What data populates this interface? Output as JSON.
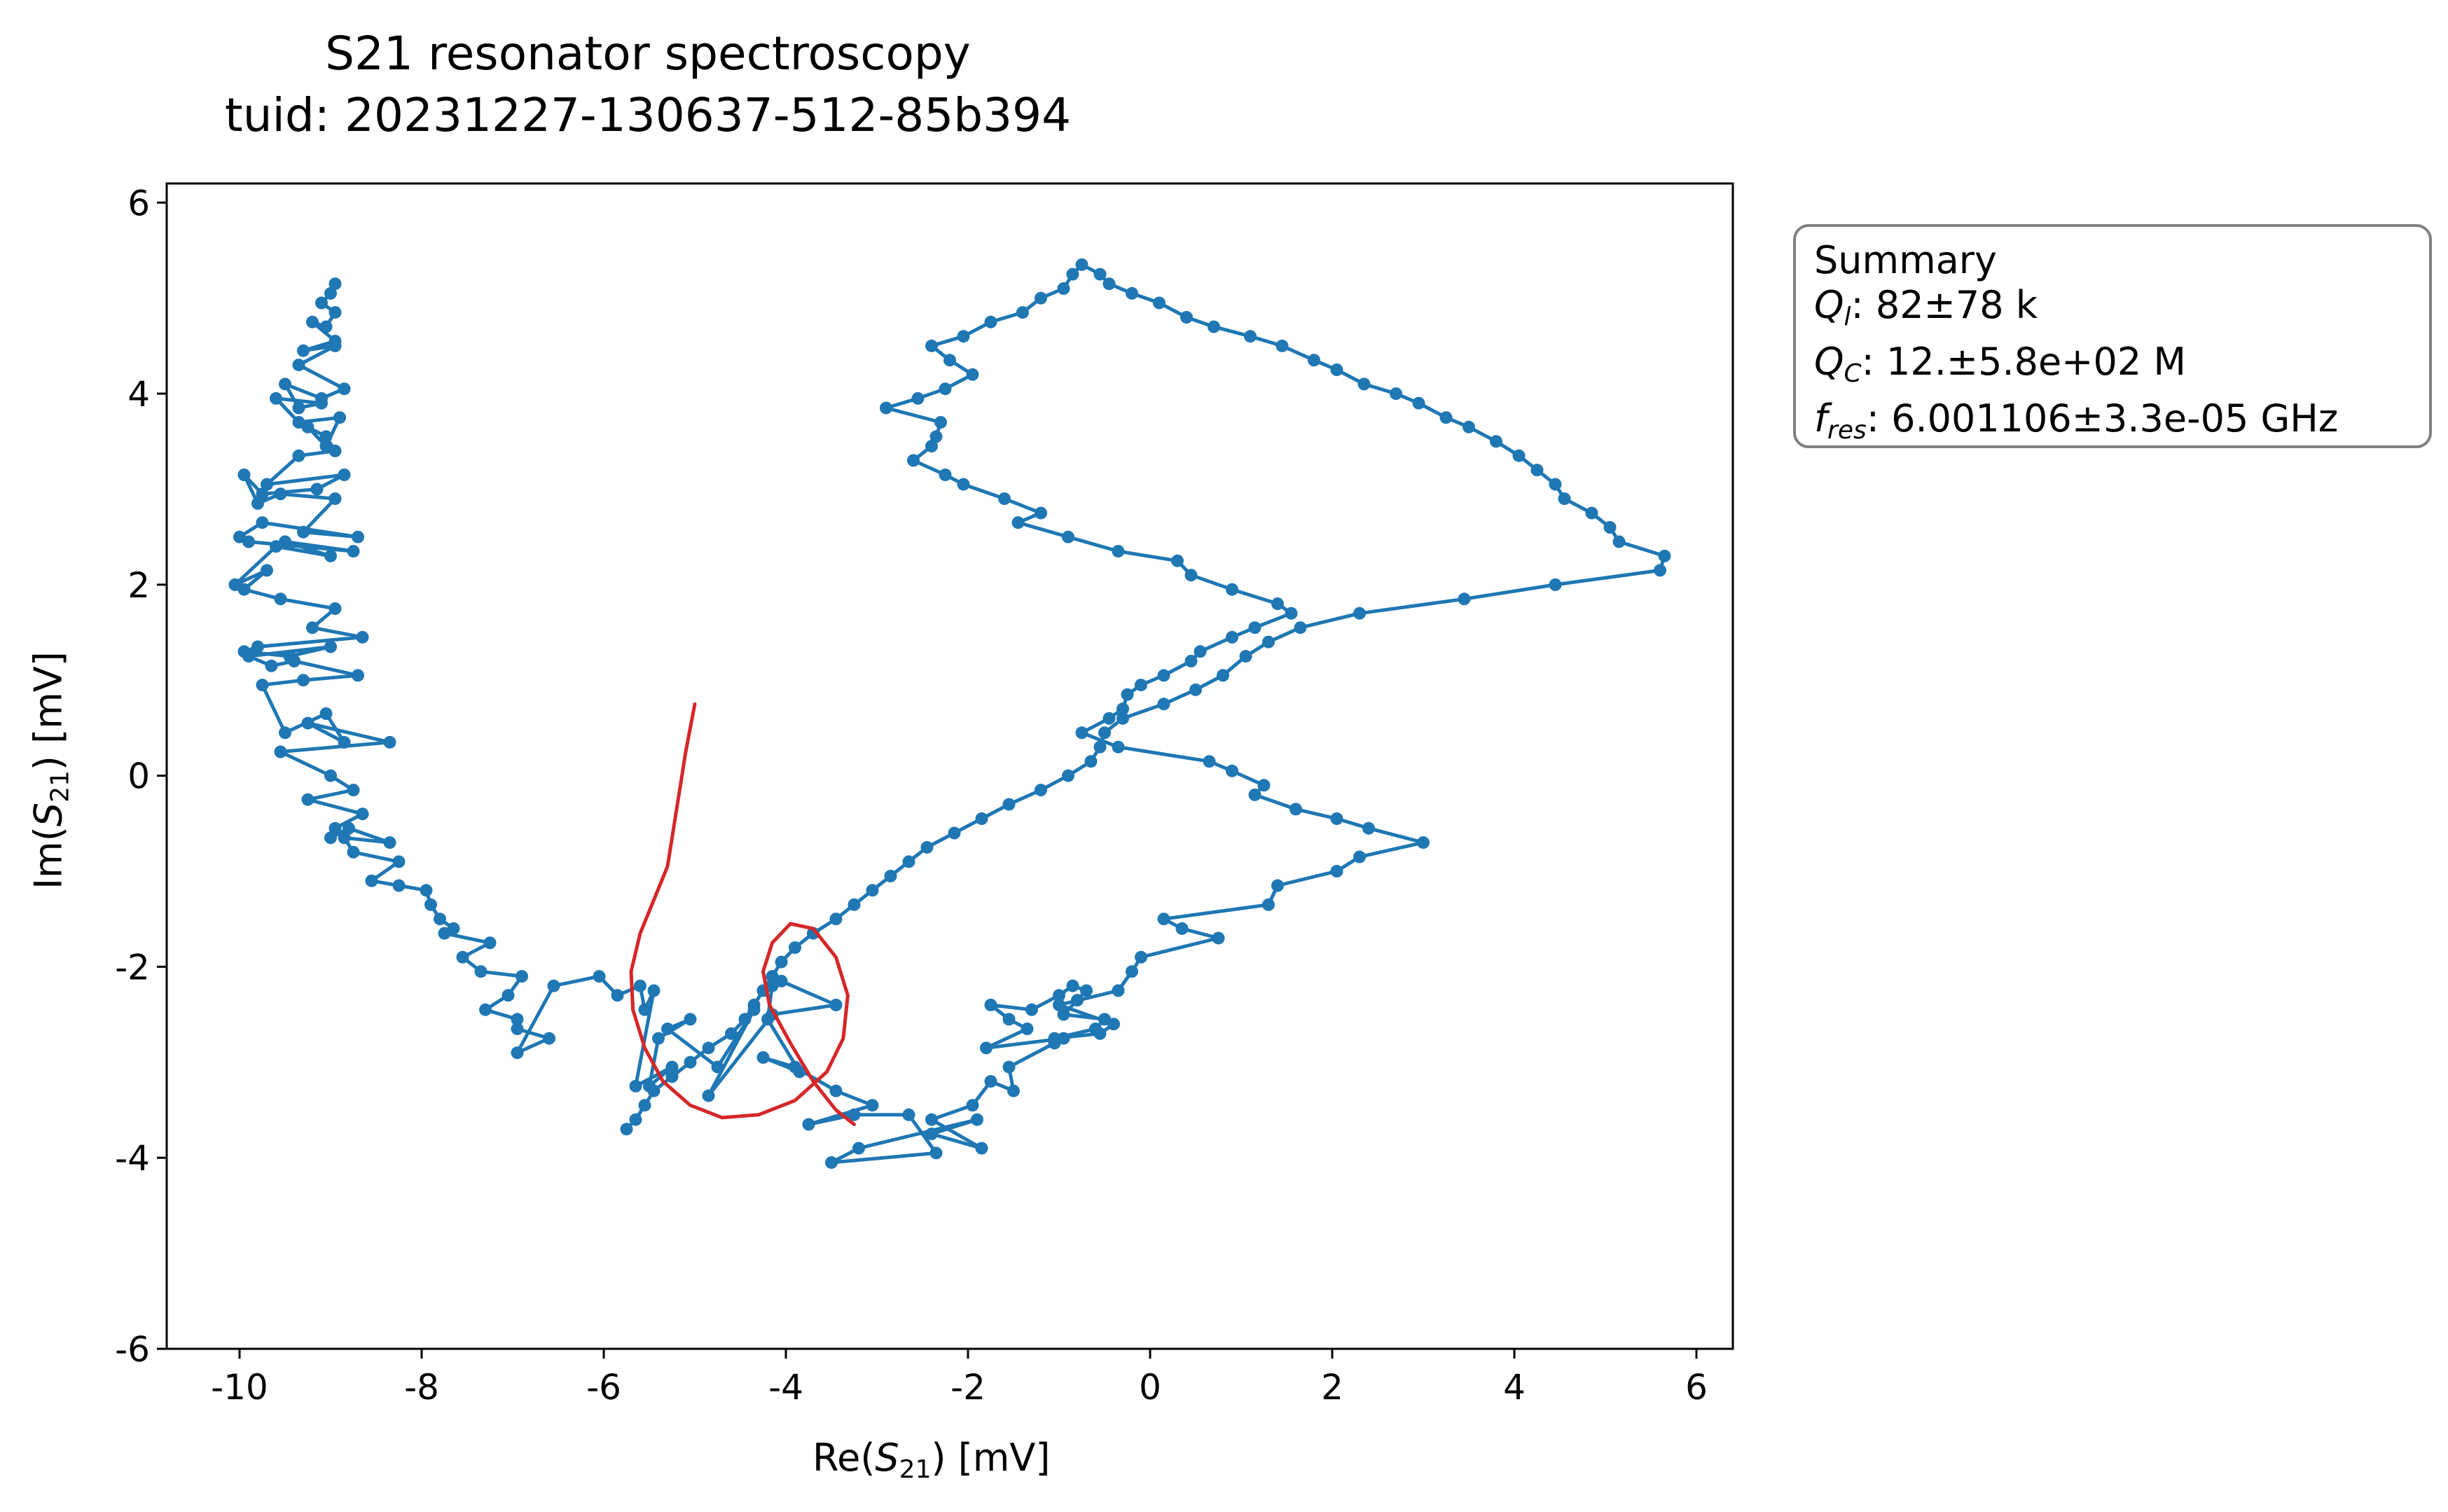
{
  "title": {
    "line1": "S21 resonator spectroscopy",
    "line2": "tuid: 20231227-130637-512-85b394"
  },
  "xlabel": {
    "prefix": "Re(",
    "sym": "S",
    "sub": "21",
    "suffix": ") [mV]"
  },
  "ylabel": {
    "prefix": "Im(",
    "sym": "S",
    "sub": "21",
    "suffix": ") [mV]"
  },
  "summary": {
    "heading": "Summary",
    "ql_sym": "Q",
    "ql_sub": "l",
    "ql_value": ": 82±78 k",
    "qc_sym": "Q",
    "qc_sub": "C",
    "qc_value": ": 12.±5.8e+02 M",
    "fres_sym": "f",
    "fres_sub": "res",
    "fres_value": ": 6.001106±3.3e-05 GHz"
  },
  "colors": {
    "data": "#1f77b4",
    "fit": "#d62728",
    "box_border": "#808080"
  },
  "chart_data": {
    "type": "scatter",
    "title": "S21 resonator spectroscopy\ntuid: 20231227-130637-512-85b394",
    "xlabel": "Re(S21) [mV]",
    "ylabel": "Im(S21) [mV]",
    "xlim": [
      -10.8,
      6.4
    ],
    "ylim": [
      -6.0,
      6.2
    ],
    "xticks": [
      -10,
      -8,
      -6,
      -4,
      -2,
      0,
      2,
      4,
      6
    ],
    "yticks": [
      -6,
      -4,
      -2,
      0,
      2,
      4,
      6
    ],
    "grid": false,
    "series": [
      {
        "style": "line-markers",
        "x": [
          -8.95,
          -9.0,
          -9.1,
          -8.95,
          -9.05,
          -9.2,
          -8.95,
          -9.3,
          -8.95,
          -9.35,
          -8.85,
          -9.1,
          -9.5,
          -9.35,
          -9.1,
          -9.6,
          -9.35,
          -8.9,
          -9.05,
          -9.25,
          -9.05,
          -8.95,
          -9.35,
          -9.7,
          -8.85,
          -9.15,
          -9.75,
          -9.95,
          -9.8,
          -9.55,
          -8.95,
          -9.3,
          -8.7,
          -9.75,
          -10.0,
          -9.9,
          -8.75,
          -9.5,
          -9.0,
          -9.6,
          -10.05,
          -9.7,
          -9.95,
          -9.55,
          -8.95,
          -9.2,
          -8.65,
          -9.8,
          -9.95,
          -9.45,
          -9.0,
          -9.9,
          -9.65,
          -9.4,
          -8.7,
          -9.3,
          -9.75,
          -9.5,
          -9.05,
          -8.85,
          -9.25,
          -8.35,
          -9.55,
          -9.0,
          -8.75,
          -9.25,
          -8.65,
          -8.95,
          -9.0,
          -8.8,
          -8.35,
          -8.85,
          -8.75,
          -8.25,
          -8.55,
          -8.25,
          -7.95,
          -7.9,
          -7.8,
          -7.65,
          -7.75,
          -7.25,
          -7.55,
          -7.35,
          -6.9,
          -7.05,
          -7.3,
          -6.95,
          -6.95,
          -6.6,
          -6.95,
          -6.55,
          -6.05,
          -5.85,
          -5.6,
          -5.55,
          -5.45,
          -5.65,
          -5.25,
          -5.5,
          -5.4,
          -5.05,
          -5.3,
          -4.75,
          -4.35,
          -4.85,
          -4.15,
          -3.45,
          -4.05,
          -4.15,
          -4.2,
          -3.85,
          -4.25,
          -3.9,
          -3.45,
          -3.05,
          -3.75,
          -3.25,
          -2.65,
          -2.35,
          -3.5,
          -3.2,
          -1.9,
          -2.4,
          -1.85,
          -2.4,
          -1.95,
          -1.75,
          -1.5,
          -1.55,
          -1.05,
          -0.95,
          -1.8,
          -1.35,
          -1.55,
          -1.75,
          -1.3,
          -1.0,
          -0.85,
          -0.7,
          -0.8,
          -0.95,
          -0.5,
          -0.6,
          -1.05,
          -0.55,
          -0.4,
          -1.0,
          -0.35,
          -0.2,
          -0.1,
          0.75,
          0.35,
          0.15,
          1.3,
          1.4,
          2.05,
          2.3,
          3.0,
          2.4,
          2.05,
          1.6,
          1.15,
          1.25,
          0.9,
          0.65,
          -0.35,
          -0.75,
          -0.45,
          -0.3,
          -0.25,
          -0.1,
          0.15,
          0.45,
          0.55,
          0.9,
          1.15,
          1.55,
          1.4,
          0.9,
          0.45,
          0.3,
          -0.35,
          -0.9,
          -1.45,
          -1.2,
          -1.6,
          -2.05,
          -2.25,
          -2.6,
          -2.4,
          -2.35,
          -2.3,
          -2.9,
          -2.55,
          -2.25,
          -1.95,
          -2.2,
          -2.4,
          -2.05,
          -1.75,
          -1.4,
          -1.2,
          -0.95,
          -0.85,
          -0.75,
          -0.55,
          -0.45,
          -0.2,
          0.1,
          0.4,
          0.7,
          1.1,
          1.45,
          1.8,
          2.05,
          2.35,
          2.7,
          2.95,
          3.25,
          3.5,
          3.8,
          4.05,
          4.25,
          4.45,
          4.55,
          4.85,
          5.05,
          5.15,
          5.65,
          5.6,
          4.45,
          3.45,
          2.3,
          1.65,
          1.3,
          1.05,
          0.8,
          0.5,
          0.15,
          -0.3,
          -0.5,
          -0.55,
          -0.65,
          -0.9,
          -1.2,
          -1.55,
          -1.85,
          -2.15,
          -2.45,
          -2.65,
          -2.85,
          -3.05,
          -3.25,
          -3.45,
          -3.7,
          -3.9,
          -4.05,
          -4.15,
          -4.25,
          -4.35,
          -4.45,
          -4.6,
          -4.85,
          -5.05,
          -5.25,
          -5.45,
          -5.55,
          -5.65,
          -5.75
        ],
        "y": [
          5.15,
          5.05,
          4.95,
          4.85,
          4.7,
          4.75,
          4.55,
          4.45,
          4.5,
          4.3,
          4.05,
          3.95,
          4.1,
          3.85,
          3.9,
          3.95,
          3.7,
          3.75,
          3.45,
          3.65,
          3.55,
          3.4,
          3.35,
          3.05,
          3.15,
          3.0,
          2.95,
          3.15,
          2.85,
          2.95,
          2.9,
          2.55,
          2.5,
          2.65,
          2.5,
          2.45,
          2.35,
          2.45,
          2.3,
          2.4,
          2.0,
          2.15,
          1.95,
          1.85,
          1.75,
          1.55,
          1.45,
          1.35,
          1.3,
          1.25,
          1.35,
          1.25,
          1.15,
          1.2,
          1.05,
          1.0,
          0.95,
          0.45,
          0.65,
          0.35,
          0.55,
          0.35,
          0.25,
          0.0,
          -0.15,
          -0.25,
          -0.4,
          -0.55,
          -0.65,
          -0.55,
          -0.7,
          -0.65,
          -0.8,
          -0.9,
          -1.1,
          -1.15,
          -1.2,
          -1.35,
          -1.5,
          -1.6,
          -1.65,
          -1.75,
          -1.9,
          -2.05,
          -2.1,
          -2.3,
          -2.45,
          -2.55,
          -2.65,
          -2.75,
          -2.9,
          -2.2,
          -2.1,
          -2.3,
          -2.2,
          -2.45,
          -2.25,
          -3.25,
          -3.05,
          -3.25,
          -2.75,
          -2.55,
          -2.65,
          -3.05,
          -2.45,
          -3.35,
          -2.5,
          -2.4,
          -2.15,
          -2.2,
          -2.55,
          -3.1,
          -2.95,
          -3.05,
          -3.3,
          -3.45,
          -3.65,
          -3.55,
          -3.55,
          -3.95,
          -4.05,
          -3.9,
          -3.6,
          -3.75,
          -3.9,
          -3.6,
          -3.45,
          -3.2,
          -3.3,
          -3.05,
          -2.8,
          -2.75,
          -2.85,
          -2.65,
          -2.55,
          -2.4,
          -2.45,
          -2.3,
          -2.2,
          -2.25,
          -2.35,
          -2.5,
          -2.55,
          -2.65,
          -2.75,
          -2.7,
          -2.6,
          -2.4,
          -2.25,
          -2.05,
          -1.9,
          -1.7,
          -1.6,
          -1.5,
          -1.35,
          -1.15,
          -1.0,
          -0.85,
          -0.7,
          -0.55,
          -0.45,
          -0.35,
          -0.2,
          -0.1,
          0.05,
          0.15,
          0.3,
          0.45,
          0.6,
          0.7,
          0.85,
          0.95,
          1.05,
          1.2,
          1.3,
          1.45,
          1.55,
          1.7,
          1.8,
          1.95,
          2.1,
          2.25,
          2.35,
          2.5,
          2.65,
          2.75,
          2.9,
          3.05,
          3.15,
          3.3,
          3.45,
          3.55,
          3.7,
          3.85,
          3.95,
          4.05,
          4.2,
          4.35,
          4.5,
          4.6,
          4.75,
          4.85,
          5.0,
          5.1,
          5.25,
          5.35,
          5.25,
          5.15,
          5.05,
          4.95,
          4.8,
          4.7,
          4.6,
          4.5,
          4.35,
          4.25,
          4.1,
          4.0,
          3.9,
          3.75,
          3.65,
          3.5,
          3.35,
          3.2,
          3.05,
          2.9,
          2.75,
          2.6,
          2.45,
          2.3,
          2.15,
          2.0,
          1.85,
          1.7,
          1.55,
          1.4,
          1.25,
          1.05,
          0.9,
          0.75,
          0.6,
          0.45,
          0.3,
          0.15,
          0.0,
          -0.15,
          -0.3,
          -0.45,
          -0.6,
          -0.75,
          -0.9,
          -1.05,
          -1.2,
          -1.35,
          -1.5,
          -1.65,
          -1.8,
          -1.95,
          -2.1,
          -2.25,
          -2.4,
          -2.55,
          -2.7,
          -2.85,
          -3.0,
          -3.15,
          -3.3,
          -3.45,
          -3.6,
          -3.7
        ]
      },
      {
        "style": "line",
        "x": [
          -5.0,
          -5.05,
          -5.1,
          -5.15,
          -5.2,
          -5.25,
          -5.3,
          -5.45,
          -5.6,
          -5.7,
          -5.68,
          -5.55,
          -5.35,
          -5.05,
          -4.7,
          -4.3,
          -3.9,
          -3.55,
          -3.37,
          -3.32,
          -3.45,
          -3.7,
          -3.95,
          -4.15,
          -4.25,
          -4.18,
          -3.95,
          -3.7,
          -3.45,
          -3.25
        ],
        "y": [
          0.75,
          0.5,
          0.25,
          -0.05,
          -0.35,
          -0.65,
          -0.95,
          -1.3,
          -1.65,
          -2.05,
          -2.45,
          -2.85,
          -3.2,
          -3.45,
          -3.58,
          -3.55,
          -3.4,
          -3.1,
          -2.75,
          -2.3,
          -1.9,
          -1.6,
          -1.55,
          -1.75,
          -2.05,
          -2.4,
          -2.8,
          -3.2,
          -3.5,
          -3.65
        ]
      }
    ]
  }
}
